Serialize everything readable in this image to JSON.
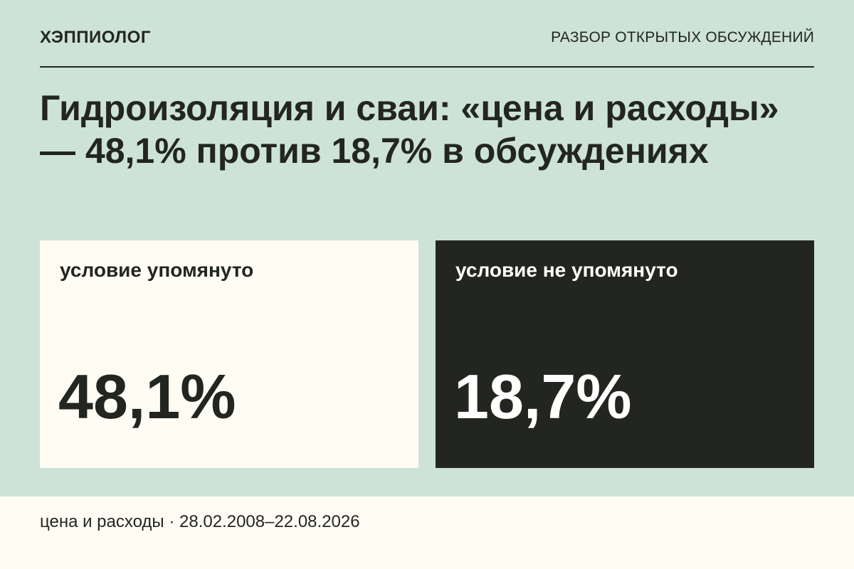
{
  "header": {
    "brand": "ХЭППИОЛОГ",
    "section": "РАЗБОР ОТКРЫТЫХ ОБСУЖДЕНИЙ"
  },
  "headline": "Гидроизоляция и сваи: «цена и расходы» — 48,1% против 18,7% в обсуждениях",
  "cards": [
    {
      "label": "условие упомянуто",
      "value": "48,1%"
    },
    {
      "label": "условие не упомянуто",
      "value": "18,7%"
    }
  ],
  "footer": {
    "caption": "цена и расходы · 28.02.2008–22.08.2026"
  },
  "colors": {
    "page_background": "#cde3da",
    "light_card": "#fffcf4",
    "dark_card": "#232620",
    "text_dark": "#232620",
    "text_light": "#ffffff"
  }
}
